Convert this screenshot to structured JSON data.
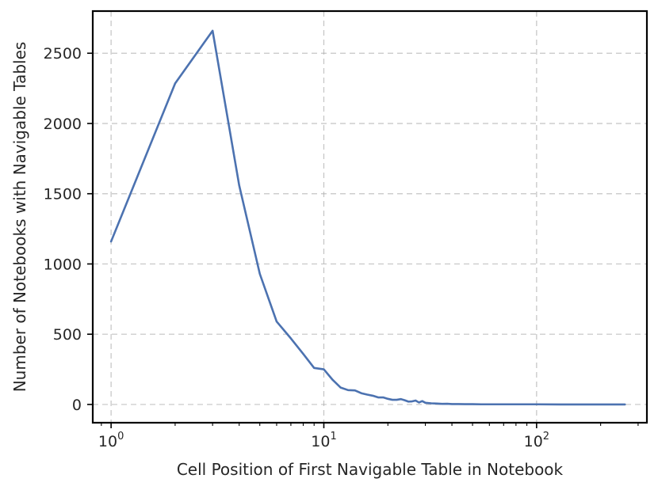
{
  "chart_data": {
    "type": "line",
    "xlabel": "Cell Position of First Navigable Table in Notebook",
    "ylabel": "Number of Notebooks with Navigable Tables",
    "x_scale": "log",
    "xlim": [
      0.82,
      330
    ],
    "ylim": [
      -130,
      2800
    ],
    "x_ticks": [
      {
        "value": 1,
        "base": "10",
        "exp": "0"
      },
      {
        "value": 10,
        "base": "10",
        "exp": "1"
      },
      {
        "value": 100,
        "base": "10",
        "exp": "2"
      }
    ],
    "y_ticks": [
      0,
      500,
      1000,
      1500,
      2000,
      2500
    ],
    "grid": true,
    "line_color": "#4c72b0",
    "series": [
      {
        "x": [
          1,
          2,
          3,
          4,
          5,
          6,
          7,
          8,
          9,
          10,
          11,
          12,
          13,
          14,
          15,
          16,
          17,
          18,
          19,
          20,
          21,
          22,
          23,
          24,
          25,
          26,
          27,
          28,
          29,
          30,
          32,
          34,
          36,
          38,
          40,
          43,
          46,
          50,
          55,
          60,
          70,
          80,
          100,
          130,
          160,
          200,
          260
        ],
        "y": [
          1160,
          2285,
          2660,
          1560,
          930,
          590,
          470,
          360,
          260,
          250,
          175,
          120,
          102,
          100,
          80,
          70,
          62,
          50,
          50,
          40,
          33,
          33,
          38,
          30,
          20,
          22,
          28,
          14,
          24,
          12,
          8,
          6,
          4,
          5,
          3,
          3,
          2,
          2,
          1,
          1,
          1,
          1,
          1,
          0,
          0,
          0,
          0
        ]
      }
    ]
  }
}
